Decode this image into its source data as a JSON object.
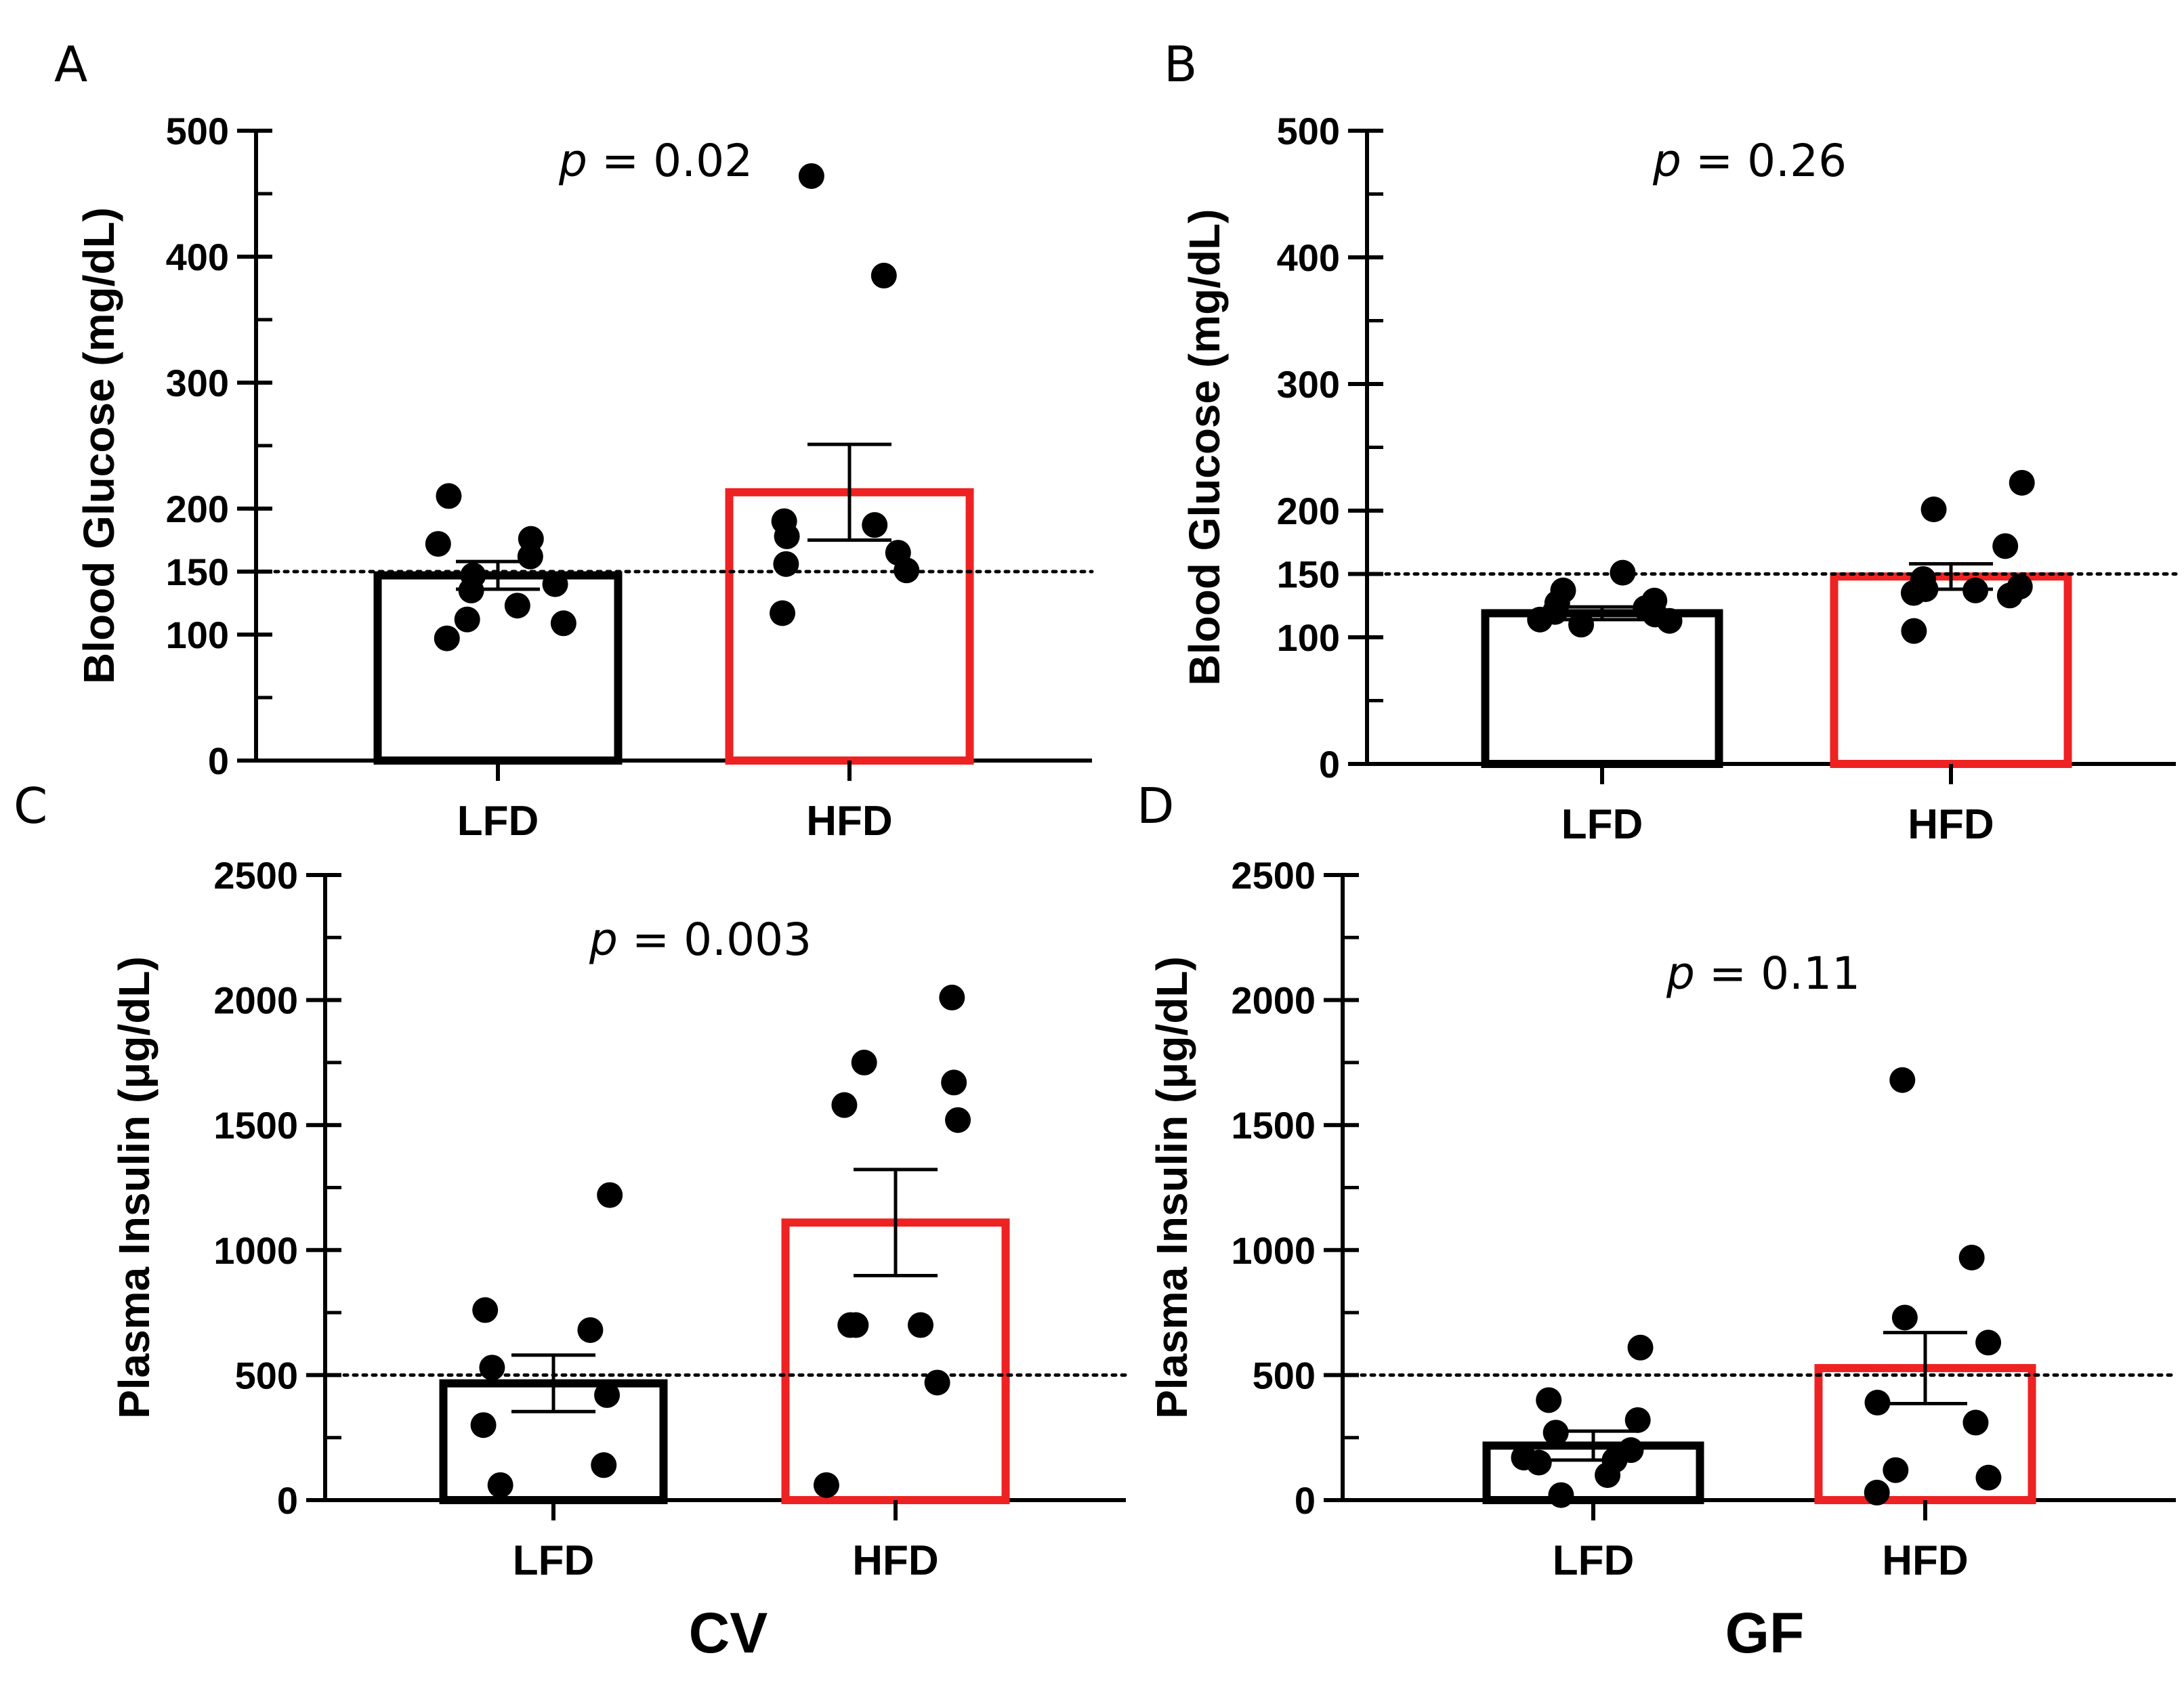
{
  "colors": {
    "control": "#000000",
    "treatment": "#ee2222",
    "axis": "#000000",
    "point": "#000000"
  },
  "chart_data": [
    {
      "panel": "A",
      "type": "bar",
      "group": "CV",
      "title": "",
      "ylabel": "Blood Glucose (mg/dL)",
      "ylim": [
        0,
        500
      ],
      "yticks": [
        0,
        100,
        150,
        200,
        300,
        400,
        500
      ],
      "minor_step": 50,
      "threshold": 150,
      "p_prefix": "p",
      "p_text": " = 0.02",
      "categories": [
        "LFD",
        "HFD"
      ],
      "values": [
        147,
        213
      ],
      "sem": [
        11,
        38
      ],
      "points": [
        [
          97,
          109,
          112,
          123,
          135,
          140,
          147,
          162,
          172,
          176,
          210
        ],
        [
          117,
          151,
          156,
          165,
          178,
          187,
          190,
          385,
          464
        ]
      ]
    },
    {
      "panel": "B",
      "type": "bar",
      "group": "GF",
      "title": "",
      "ylabel": "Blood Glucose (mg/dL)",
      "ylim": [
        0,
        500
      ],
      "yticks": [
        0,
        100,
        150,
        200,
        300,
        400,
        500
      ],
      "minor_step": 50,
      "threshold": 150,
      "p_prefix": "p",
      "p_text": " = 0.26",
      "categories": [
        "LFD",
        "HFD"
      ],
      "values": [
        119,
        148
      ],
      "sem": [
        5,
        10
      ],
      "points": [
        [
          110,
          113,
          114,
          118,
          120,
          123,
          127,
          129,
          137,
          151
        ],
        [
          105,
          133,
          135,
          137,
          138,
          140,
          146,
          172,
          201,
          222
        ]
      ]
    },
    {
      "panel": "C",
      "type": "bar",
      "group": "CV",
      "title": "",
      "ylabel": "Plasma Insulin (μg/dL)",
      "ylim": [
        0,
        2500
      ],
      "yticks": [
        0,
        500,
        1000,
        1500,
        2000,
        2500
      ],
      "minor_step": 250,
      "threshold": 500,
      "p_prefix": "p",
      "p_text": " = 0.003",
      "categories": [
        "LFD",
        "HFD"
      ],
      "values": [
        467,
        1110
      ],
      "sem": [
        113,
        212
      ],
      "points": [
        [
          60,
          140,
          300,
          420,
          530,
          680,
          760,
          1220
        ],
        [
          60,
          470,
          700,
          700,
          700,
          1520,
          1580,
          1670,
          1750,
          2010
        ]
      ]
    },
    {
      "panel": "D",
      "type": "bar",
      "group": "GF",
      "title": "",
      "ylabel": "Plasma Insulin (μg/dL)",
      "ylim": [
        0,
        2500
      ],
      "yticks": [
        0,
        500,
        1000,
        1500,
        2000,
        2500
      ],
      "minor_step": 250,
      "threshold": 500,
      "p_prefix": "p",
      "p_text": " = 0.11",
      "categories": [
        "LFD",
        "HFD"
      ],
      "values": [
        218,
        528
      ],
      "sem": [
        58,
        142
      ],
      "points": [
        [
          20,
          100,
          150,
          160,
          170,
          200,
          270,
          320,
          400,
          610
        ],
        [
          30,
          90,
          120,
          310,
          390,
          630,
          730,
          970,
          1680
        ]
      ]
    }
  ],
  "group_labels": [
    "CV",
    "GF"
  ]
}
